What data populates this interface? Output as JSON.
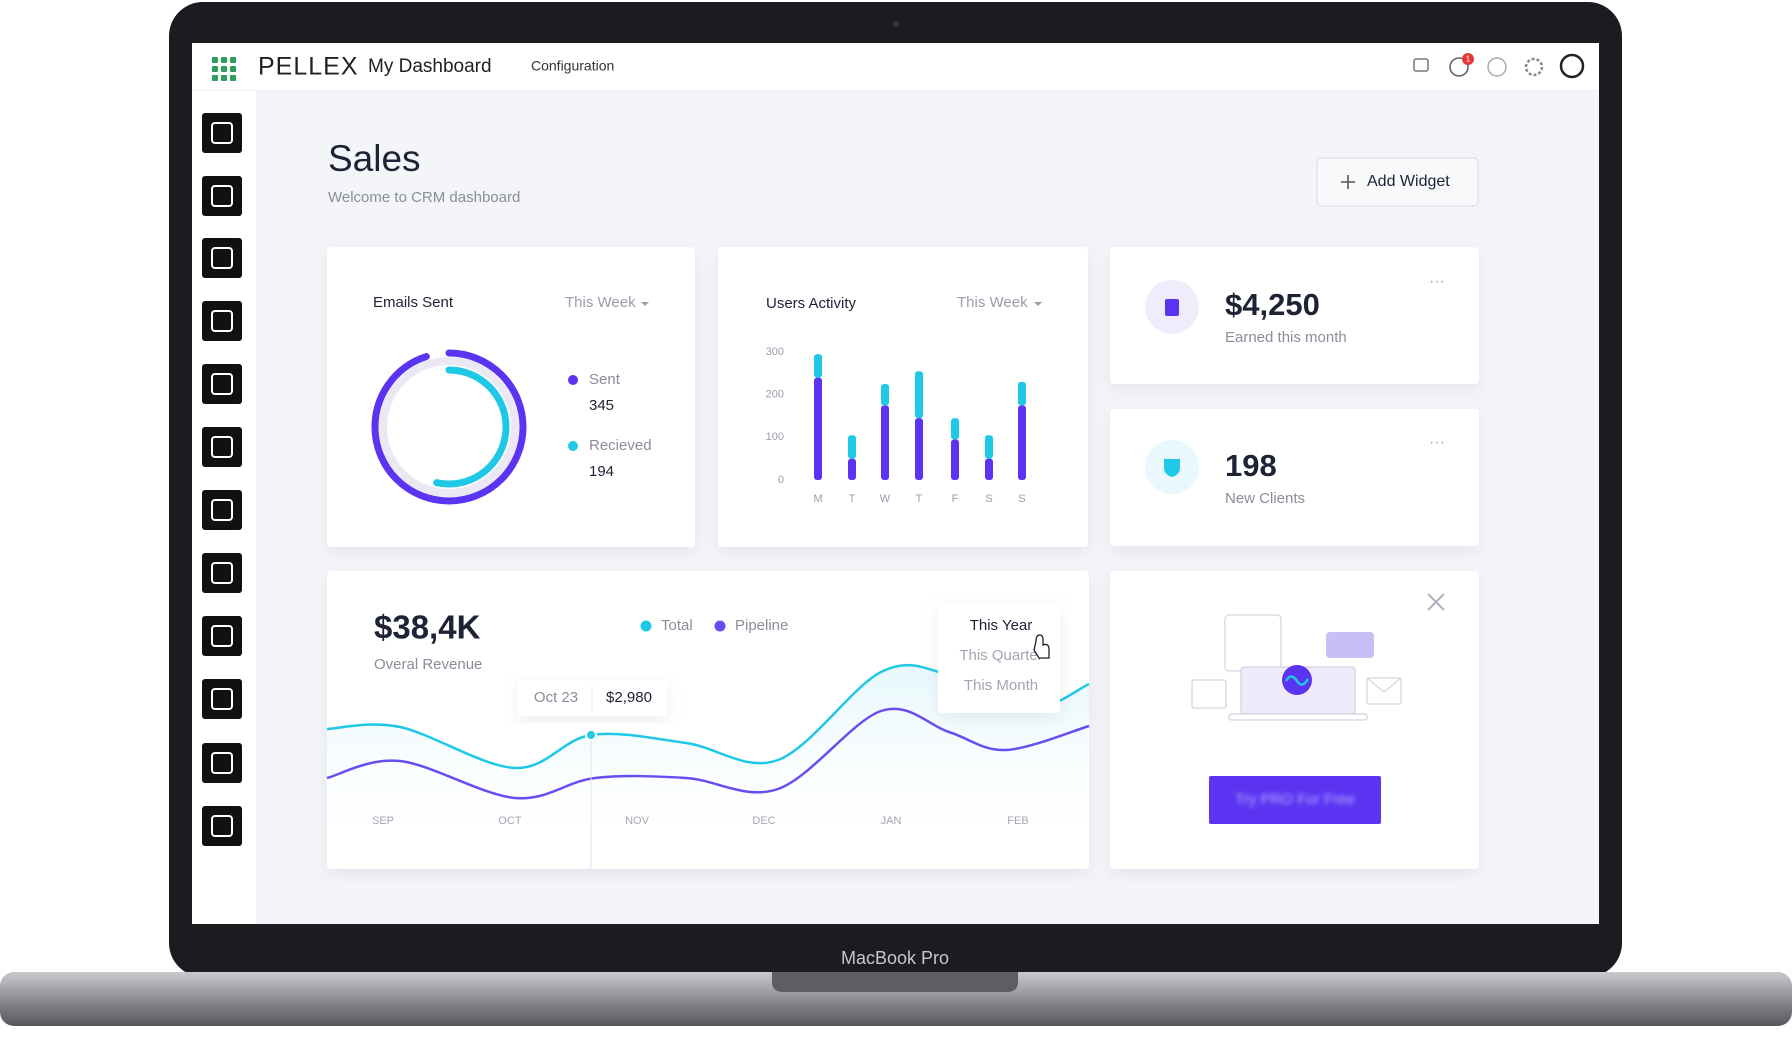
{
  "device_label": "MacBook Pro",
  "header": {
    "brand": "PELLEX",
    "title": "My Dashboard",
    "nav": "Configuration",
    "notification_count": 1
  },
  "page": {
    "title": "Sales",
    "subtitle": "Welcome to CRM dashboard",
    "add_widget": "Add Widget"
  },
  "emails_widget": {
    "type": "donut",
    "title": "Emails Sent",
    "period": "This Week",
    "series": [
      {
        "name": "Sent",
        "color": "#5b34f2",
        "value": 345
      },
      {
        "name": "Recieved",
        "color": "#1ec8e6",
        "value": 194
      }
    ]
  },
  "activity_widget": {
    "type": "stacked_bar",
    "title": "Users Activity",
    "period": "This Week",
    "categories": [
      "M",
      "T",
      "W",
      "T",
      "F",
      "S",
      "S"
    ],
    "series": [
      {
        "color": "#5b34f2",
        "values": [
          240,
          50,
          175,
          145,
          95,
          50,
          175
        ]
      },
      {
        "color": "#1ec8e6",
        "values": [
          55,
          55,
          50,
          110,
          50,
          55,
          55
        ]
      }
    ],
    "ylim": [
      0,
      300
    ],
    "yticks": [
      0,
      100,
      200,
      300
    ]
  },
  "earnings_widget": {
    "value": "$4,250",
    "label": "Earned this month"
  },
  "clients_widget": {
    "value": 198,
    "label": "New Clients"
  },
  "revenue_widget": {
    "value": "$38,4K",
    "label": "Overal Revenue",
    "legend": [
      {
        "name": "Total",
        "color": "#1ec8e6"
      },
      {
        "name": "Pipeline",
        "color": "#6a4cf0"
      }
    ],
    "periods": [
      "This Year",
      "This Quarter",
      "This Month"
    ],
    "tooltip": {
      "date": "Oct 23",
      "value": "$2,980"
    },
    "months": [
      "SEP",
      "OCT",
      "NOV",
      "DEC",
      "JAN",
      "FEB"
    ]
  },
  "promo_widget": {
    "button": "Try PRO For Free"
  }
}
